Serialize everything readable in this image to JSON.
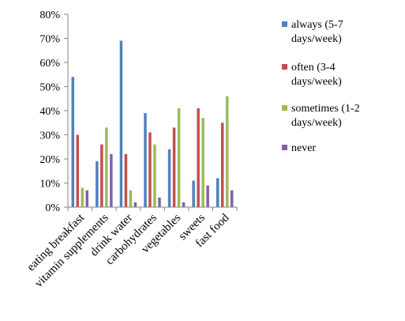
{
  "chart_data": {
    "type": "bar",
    "categories": [
      "eating breakfast",
      "vitamin supplements",
      "drink water",
      "carbohydrates",
      "vegetables",
      "sweets",
      "fast food"
    ],
    "series": [
      {
        "name": "always (5-7 days/week)",
        "legend_lines": [
          "always (5-7",
          "days/week)"
        ],
        "color": "#4F81BD",
        "values": [
          0.54,
          0.19,
          0.69,
          0.39,
          0.24,
          0.11,
          0.12
        ]
      },
      {
        "name": "often (3-4 days/week)",
        "legend_lines": [
          "often (3-4",
          "days/week)"
        ],
        "color": "#C0504D",
        "values": [
          0.3,
          0.26,
          0.22,
          0.31,
          0.33,
          0.41,
          0.35
        ]
      },
      {
        "name": "sometimes (1-2 days/week)",
        "legend_lines": [
          "sometimes (1-2",
          "days/week)"
        ],
        "color": "#9BBB59",
        "values": [
          0.08,
          0.33,
          0.07,
          0.26,
          0.41,
          0.37,
          0.46
        ]
      },
      {
        "name": "never",
        "legend_lines": [
          "never"
        ],
        "color": "#8064A2",
        "values": [
          0.07,
          0.22,
          0.02,
          0.04,
          0.02,
          0.09,
          0.07
        ]
      }
    ],
    "extra_bars_note": "",
    "ylim": [
      0,
      0.8
    ],
    "yticks": [
      {
        "value": 0.0,
        "label": "0%"
      },
      {
        "value": 0.1,
        "label": "10%"
      },
      {
        "value": 0.2,
        "label": "20%"
      },
      {
        "value": 0.3,
        "label": "30%"
      },
      {
        "value": 0.4,
        "label": "40%"
      },
      {
        "value": 0.5,
        "label": "50%"
      },
      {
        "value": 0.6,
        "label": "60%"
      },
      {
        "value": 0.7,
        "label": "70%"
      },
      {
        "value": 0.8,
        "label": "80%"
      }
    ],
    "title": "",
    "xlabel": "",
    "ylabel": "",
    "grid": false,
    "legend_position": "right"
  }
}
